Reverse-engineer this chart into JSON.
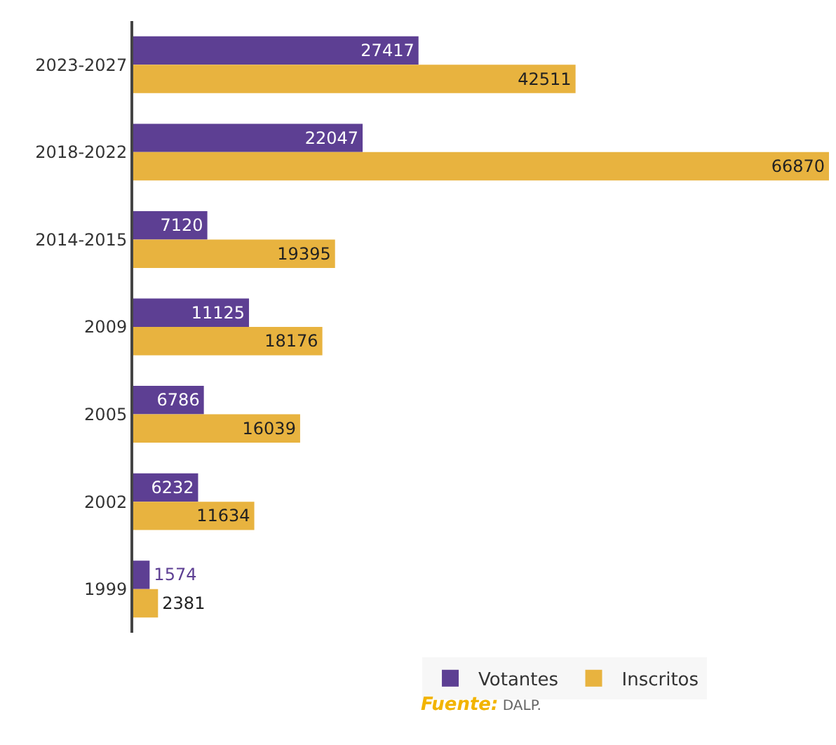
{
  "chart_data": {
    "type": "bar",
    "orientation": "horizontal",
    "categories": [
      "2023-2027",
      "2018-2022",
      "2014-2015",
      "2009",
      "2005",
      "2002",
      "1999"
    ],
    "series": [
      {
        "name": "Votantes",
        "color": "#5d3f93",
        "values": [
          27417,
          22047,
          7120,
          11125,
          6786,
          6232,
          1574
        ]
      },
      {
        "name": "Inscritos",
        "color": "#e8b33f",
        "values": [
          42511,
          66870,
          19395,
          18176,
          16039,
          11634,
          2381
        ]
      }
    ],
    "data_labels": true,
    "legend": "bottom",
    "grid": false,
    "annotations": [
      "Fuente: DALP."
    ]
  }
}
